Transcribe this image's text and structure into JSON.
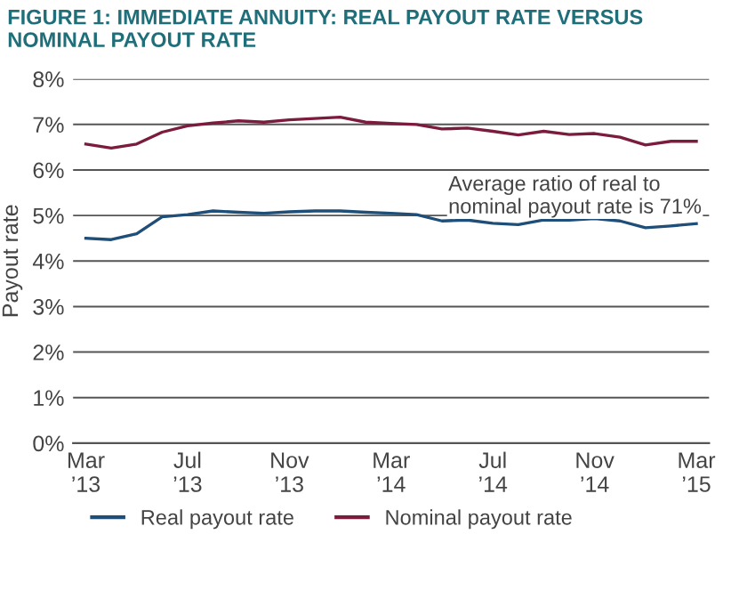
{
  "chart_data": {
    "type": "line",
    "title": "FIGURE 1: IMMEDIATE ANNUITY: REAL PAYOUT RATE VERSUS NOMINAL PAYOUT RATE",
    "ylabel": "Payout rate",
    "categories": [
      "Mar\n’13",
      null,
      null,
      null,
      "Jul\n’13",
      null,
      null,
      null,
      "Nov\n’13",
      null,
      null,
      null,
      "Mar\n’14",
      null,
      null,
      null,
      "Jul\n’14",
      null,
      null,
      null,
      "Nov\n’14",
      null,
      null,
      null,
      "Mar\n’15"
    ],
    "series": [
      {
        "name": "Real payout rate",
        "color": "#1f4e79",
        "values": [
          4.5,
          4.47,
          4.6,
          4.97,
          5.02,
          5.1,
          5.07,
          5.05,
          5.08,
          5.1,
          5.1,
          5.07,
          5.05,
          5.02,
          4.88,
          4.9,
          4.83,
          4.8,
          4.9,
          4.9,
          4.93,
          4.88,
          4.73,
          4.77,
          4.82
        ]
      },
      {
        "name": "Nominal payout rate",
        "color": "#7b1c3e",
        "values": [
          6.57,
          6.48,
          6.57,
          6.83,
          6.97,
          7.03,
          7.08,
          7.05,
          7.1,
          7.13,
          7.16,
          7.05,
          7.02,
          7.0,
          6.9,
          6.92,
          6.85,
          6.77,
          6.85,
          6.78,
          6.8,
          6.72,
          6.55,
          6.63,
          6.63
        ]
      }
    ],
    "ylim": [
      0,
      8
    ],
    "yticks": [
      {
        "value": 0,
        "label": "0%"
      },
      {
        "value": 1,
        "label": "1%"
      },
      {
        "value": 2,
        "label": "2%"
      },
      {
        "value": 3,
        "label": "3%"
      },
      {
        "value": 4,
        "label": "4%"
      },
      {
        "value": 5,
        "label": "5%"
      },
      {
        "value": 6,
        "label": "6%"
      },
      {
        "value": 7,
        "label": "7%"
      },
      {
        "value": 8,
        "label": "8%"
      }
    ],
    "annotations": [
      "Average ratio of real to\nnominal payout rate is 71%"
    ],
    "grid": "y",
    "legend": "bottom",
    "marker": "none",
    "line_style": "solid"
  }
}
